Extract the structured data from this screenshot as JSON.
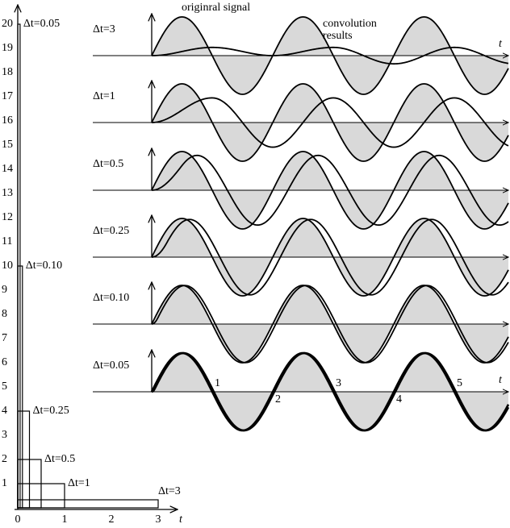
{
  "title": "originral signal",
  "legend": [
    "convolution",
    "results"
  ],
  "left_panel": {
    "y_labels": [
      "1",
      "2",
      "3",
      "4",
      "5",
      "6",
      "7",
      "8",
      "9",
      "10",
      "11",
      "12",
      "13",
      "14",
      "15",
      "16",
      "17",
      "18",
      "19",
      "20"
    ],
    "x_labels": [
      "0",
      "1",
      "2",
      "3"
    ],
    "x_axis_label": "t",
    "boxes": [
      "Δt=3",
      "Δt=1",
      "Δt=0.5",
      "Δt=0.25",
      "Δt=0.10",
      "Δt=0.05"
    ]
  },
  "right_panel": {
    "rows": [
      "Δt=3",
      "Δt=1",
      "Δt=0.5",
      "Δt=0.25",
      "Δt=0.10",
      "Δt=0.05"
    ],
    "top_axis_label": "t",
    "bottom_axis_label": "t",
    "crossings": [
      "1",
      "2",
      "3",
      "4",
      "5"
    ]
  }
}
